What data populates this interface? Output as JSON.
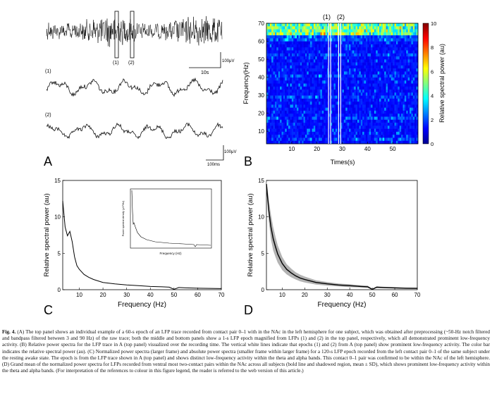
{
  "panels": {
    "A": {
      "letter": "A",
      "label_1": "(1)",
      "label_2": "(2)",
      "scale_amp_top": "100μV",
      "scale_time_top": "10s",
      "trace1_label": "(1)",
      "trace2_label": "(2)",
      "scale_amp_bottom": "100μV",
      "scale_time_bottom": "100ms"
    },
    "B": {
      "letter": "B",
      "marker_1": "(1)",
      "marker_2": "(2)",
      "colorbar_label": "Relative spectral power (au)",
      "colorbar_ticks": [
        "10",
        "8",
        "6",
        "4",
        "2",
        "0"
      ]
    },
    "C": {
      "letter": "C",
      "inset_ylabel": "Power spectral density (μV²/Hz)",
      "inset_xlabel": "Frequency (Hz)"
    },
    "D": {
      "letter": "D"
    }
  },
  "chart_data": [
    {
      "id": "B",
      "type": "heatmap",
      "title": "",
      "xlabel": "Times(s)",
      "ylabel": "Frequency(Hz)",
      "xlim": [
        0,
        60
      ],
      "ylim": [
        3,
        70
      ],
      "xticks": [
        10,
        20,
        30,
        40,
        50
      ],
      "yticks": [
        10,
        20,
        30,
        40,
        50,
        60,
        70
      ],
      "colorbar_range": [
        0,
        10
      ],
      "epoch_markers_s": [
        25,
        29
      ]
    },
    {
      "id": "C",
      "type": "line",
      "xlabel": "Frequency (Hz)",
      "ylabel": "Relative spectral power (au)",
      "xlim": [
        3,
        70
      ],
      "ylim": [
        0,
        15
      ],
      "xticks": [
        10,
        20,
        30,
        40,
        50,
        60,
        70
      ],
      "yticks": [
        0,
        5,
        10,
        15
      ],
      "series": [
        {
          "name": "Normalized power spectrum",
          "x": [
            3,
            4,
            5,
            6,
            7,
            8,
            9,
            10,
            12,
            14,
            16,
            18,
            20,
            25,
            30,
            35,
            40,
            45,
            48,
            50,
            52,
            55,
            60,
            65,
            70
          ],
          "y": [
            12.2,
            8.6,
            7.4,
            8.0,
            6.6,
            4.5,
            3.3,
            2.8,
            2.1,
            1.7,
            1.4,
            1.2,
            1.0,
            0.8,
            0.65,
            0.55,
            0.45,
            0.4,
            0.35,
            0.05,
            0.3,
            0.25,
            0.2,
            0.18,
            0.15
          ]
        }
      ]
    },
    {
      "id": "D",
      "type": "line",
      "xlabel": "Frequency (Hz)",
      "ylabel": "Relative spectral power (au)",
      "xlim": [
        3,
        70
      ],
      "ylim": [
        0,
        15
      ],
      "xticks": [
        10,
        20,
        30,
        40,
        50,
        60,
        70
      ],
      "yticks": [
        0,
        5,
        10,
        15
      ],
      "series": [
        {
          "name": "Grand mean",
          "x": [
            3,
            4,
            5,
            6,
            7,
            8,
            10,
            12,
            14,
            16,
            18,
            20,
            25,
            30,
            35,
            40,
            45,
            48,
            50,
            52,
            55,
            60,
            65,
            70
          ],
          "y": [
            14.5,
            11.0,
            8.6,
            7.0,
            5.9,
            4.9,
            3.6,
            2.8,
            2.3,
            1.9,
            1.6,
            1.4,
            1.0,
            0.8,
            0.65,
            0.55,
            0.45,
            0.4,
            0.05,
            0.35,
            0.3,
            0.25,
            0.2,
            0.18
          ],
          "sd": [
            0.6,
            1.5,
            1.7,
            1.6,
            1.4,
            1.2,
            0.9,
            0.7,
            0.6,
            0.5,
            0.45,
            0.4,
            0.3,
            0.25,
            0.2,
            0.2,
            0.15,
            0.15,
            0.05,
            0.12,
            0.1,
            0.1,
            0.08,
            0.08
          ]
        }
      ]
    }
  ],
  "caption": {
    "label": "Fig. 4.",
    "text": "(A) The top panel shows an individual example of a 60-s epoch of an LFP trace recorded from contact pair 0–1 with in the NAc in the left hemisphere for one subject, which was obtained after preprocessing (~50-Hz notch filtered and bandpass filtered between 3 and 90 Hz) of the raw trace; both the middle and bottom panels show a 1-s LFP epoch magnified from LFPs (1) and (2) in the top panel, respectively, which all demonstrated prominent low-frequency activity. (B) Relative power spectra for the LFP trace in A (top panel) visualized over the recording time. The vertical white lines indicate that epochs (1) and (2) from A (top panel) show prominent low-frequency activity. The color bar indicates the relative spectral power (au). (C) Normalized power spectra (larger frame) and absolute power spectra (smaller frame within larger frame) for a 120-s LFP epoch recorded from the left contact pair 0–1 of the same subject under the resting awake state. The epoch is from the LFP trace shown in A (top panel) and shows distinct low-frequency activity within the theta and alpha bands. This contact 0–1 pair was confirmed to be within the NAc of the left hemisphere. (D) Grand mean of the normalized power spectra for LFPs recorded from ventral most two-contact pairs within the NAc across all subjects (bold line and shadowed region, mean ± SD), which shows prominent low-frequency activity within the theta and alpha bands. (For interpretation of the references to colour in this figure legend, the reader is referred to the web version of this article.)"
  }
}
